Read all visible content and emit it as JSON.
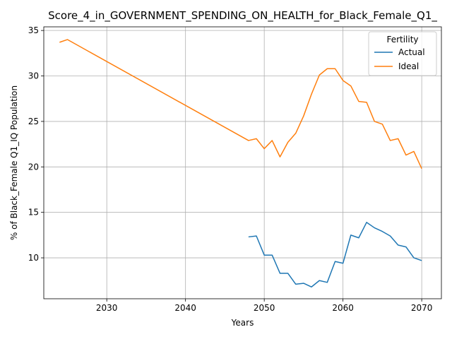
{
  "chart_data": {
    "type": "line",
    "title": "Score_4_in_GOVERNMENT_SPENDING_ON_HEALTH_for_Black_Female_Q1_",
    "xlabel": "Years",
    "ylabel": "% of Black_Female Q1_IQ Population",
    "xlim": [
      2022,
      2072.5
    ],
    "ylim": [
      5.5,
      35.4
    ],
    "xticks": [
      2030,
      2040,
      2050,
      2060,
      2070
    ],
    "yticks": [
      10,
      15,
      20,
      25,
      30,
      35
    ],
    "grid": true,
    "legend": {
      "title": "Fertility",
      "position": "top-right"
    },
    "series": [
      {
        "name": "Actual",
        "color": "#1f77b4",
        "x": [
          2048,
          2049,
          2050,
          2051,
          2052,
          2053,
          2054,
          2055,
          2056,
          2057,
          2058,
          2059,
          2060,
          2061,
          2062,
          2063,
          2064,
          2065,
          2066,
          2067,
          2068,
          2069,
          2070
        ],
        "y": [
          12.3,
          12.4,
          10.3,
          10.3,
          8.3,
          8.3,
          7.1,
          7.2,
          6.8,
          7.5,
          7.3,
          9.6,
          9.4,
          12.5,
          12.2,
          13.9,
          13.3,
          12.9,
          12.4,
          11.4,
          11.2,
          10.0,
          9.7
        ]
      },
      {
        "name": "Ideal",
        "color": "#ff7f0e",
        "x": [
          2024,
          2025,
          2048,
          2049,
          2050,
          2051,
          2052,
          2053,
          2054,
          2055,
          2056,
          2057,
          2058,
          2059,
          2060,
          2061,
          2062,
          2063,
          2064,
          2065,
          2066,
          2067,
          2068,
          2069,
          2070
        ],
        "y": [
          33.7,
          34.0,
          22.9,
          23.1,
          22.0,
          22.9,
          21.1,
          22.7,
          23.7,
          25.6,
          28.0,
          30.1,
          30.8,
          30.8,
          29.5,
          28.9,
          27.2,
          27.1,
          25.0,
          24.7,
          22.9,
          23.1,
          21.3,
          21.7,
          19.8
        ]
      }
    ]
  }
}
